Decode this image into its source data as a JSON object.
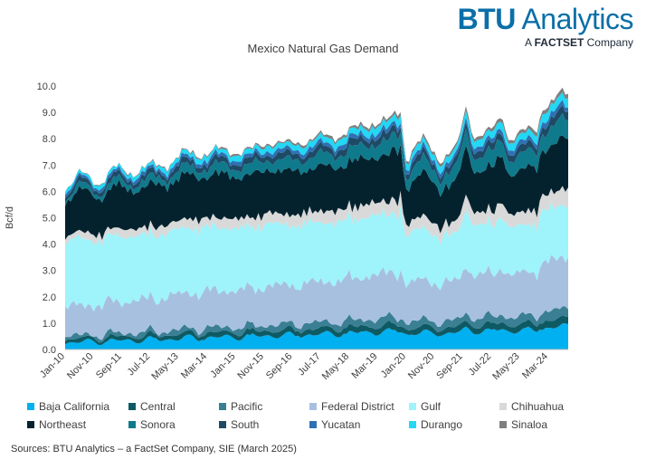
{
  "brand": {
    "name_part1": "BTU",
    "name_part2": " Analytics",
    "tag_prefix": "A ",
    "tag_bold": "FACTSET",
    "tag_suffix": " Company"
  },
  "source": "Sources: BTU Analytics – a FactSet Company, SIE (March 2025)",
  "chart_data": {
    "type": "area",
    "stacked": true,
    "title": "Mexico Natural Gas Demand",
    "xlabel": "",
    "ylabel": "Bcf/d",
    "ylim": [
      0,
      10
    ],
    "yticks": [
      "0.0",
      "1.0",
      "2.0",
      "3.0",
      "4.0",
      "5.0",
      "6.0",
      "7.0",
      "8.0",
      "9.0",
      "10.0"
    ],
    "x_start": "Jan-10",
    "n_months": 178,
    "x_ticks": [
      "Jan-10",
      "Nov-10",
      "Sep-11",
      "Jul-12",
      "May-13",
      "Mar-14",
      "Jan-15",
      "Nov-15",
      "Sep-16",
      "Jul-17",
      "May-18",
      "Mar-19",
      "Jan-20",
      "Nov-20",
      "Sep-21",
      "Jul-22",
      "May-23",
      "Mar-24"
    ],
    "x_tick_index": [
      0,
      10,
      20,
      30,
      40,
      50,
      60,
      70,
      80,
      90,
      100,
      110,
      120,
      130,
      140,
      150,
      160,
      170
    ],
    "total_anchors": {
      "index": [
        0,
        5,
        12,
        17,
        24,
        30,
        36,
        42,
        48,
        54,
        60,
        66,
        72,
        78,
        84,
        90,
        96,
        102,
        108,
        114,
        118,
        120,
        122,
        126,
        132,
        138,
        141,
        144,
        150,
        154,
        156,
        162,
        166,
        168,
        172,
        174,
        177
      ],
      "value": [
        6.2,
        6.6,
        6.4,
        6.8,
        6.8,
        6.9,
        7.1,
        7.4,
        7.5,
        7.5,
        7.6,
        7.5,
        8.0,
        7.7,
        8.0,
        8.0,
        8.2,
        8.3,
        8.7,
        8.6,
        9.1,
        7.3,
        7.6,
        7.9,
        7.3,
        7.6,
        9.2,
        8.2,
        8.2,
        8.9,
        8.1,
        8.2,
        8.4,
        9.3,
        9.4,
        9.6,
        9.7
      ]
    },
    "series": [
      {
        "name": "Baja California",
        "color": "#00b0f0",
        "start": 0.25,
        "end": 0.85,
        "amp": 0.12
      },
      {
        "name": "Central",
        "color": "#0e5a64",
        "start": 0.12,
        "end": 0.28,
        "amp": 0.04
      },
      {
        "name": "Pacific",
        "color": "#3a7f94",
        "start": 0.1,
        "end": 0.35,
        "amp": 0.12
      },
      {
        "name": "Federal District",
        "color": "#a7c0e0",
        "start": 1.05,
        "end": 1.9,
        "amp": 0.25
      },
      {
        "name": "Gulf",
        "color": "#9ff3fa",
        "start": 2.4,
        "end": 1.95,
        "amp": 0.2
      },
      {
        "name": "Chihuahua",
        "color": "#d9d9d9",
        "start": 0.22,
        "end": 0.6,
        "amp": 0.1
      },
      {
        "name": "Northeast",
        "color": "#04222e",
        "start": 1.4,
        "end": 1.8,
        "amp": 0.2
      },
      {
        "name": "Sonora",
        "color": "#0f7a8c",
        "start": 0.15,
        "end": 0.7,
        "amp": 0.12
      },
      {
        "name": "South",
        "color": "#1e4a66",
        "start": 0.15,
        "end": 0.3,
        "amp": 0.05
      },
      {
        "name": "Yucatan",
        "color": "#2f70b3",
        "start": 0.1,
        "end": 0.2,
        "amp": 0.04
      },
      {
        "name": "Durango",
        "color": "#22d8f5",
        "start": 0.1,
        "end": 0.32,
        "amp": 0.06
      },
      {
        "name": "Sinaloa",
        "color": "#7f7f7f",
        "start": 0.0,
        "end": 0.16,
        "amp": 0.03
      }
    ]
  }
}
